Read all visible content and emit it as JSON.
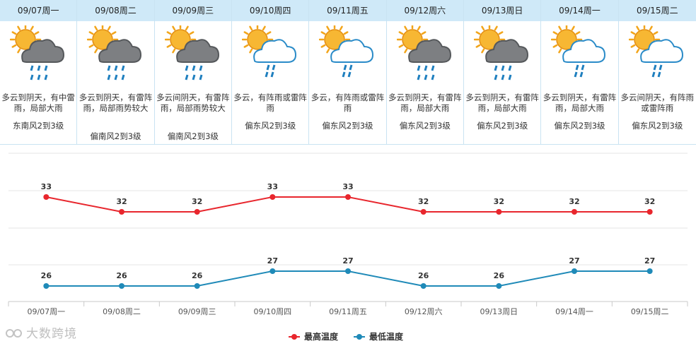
{
  "days": [
    {
      "date": "09/07周一",
      "desc": "多云到阴天，有中雷雨，局部大雨",
      "wind": "东南风2到3级",
      "icon": "sun-dark-cloud-rain-icon",
      "rain_style": "dark"
    },
    {
      "date": "09/08周二",
      "desc": "多云到阴天，有雷阵雨，局部雨势较大",
      "wind": "偏南风2到3级",
      "icon": "sun-dark-cloud-rain-icon",
      "rain_style": "dark"
    },
    {
      "date": "09/09周三",
      "desc": "多云间阴天，有雷阵雨，局部雨势较大",
      "wind": "偏南风2到3级",
      "icon": "sun-dark-cloud-rain-icon",
      "rain_style": "dark"
    },
    {
      "date": "09/10周四",
      "desc": "多云，有阵雨或雷阵雨",
      "wind": "偏东风2到3级",
      "icon": "sun-cloud-shower-icon",
      "rain_style": "light"
    },
    {
      "date": "09/11周五",
      "desc": "多云，有阵雨或雷阵雨",
      "wind": "偏东风2到3级",
      "icon": "sun-cloud-shower-icon",
      "rain_style": "light"
    },
    {
      "date": "09/12周六",
      "desc": "多云到阴天，有雷阵雨，局部大雨",
      "wind": "偏东风2到3级",
      "icon": "sun-dark-cloud-rain-icon",
      "rain_style": "dark"
    },
    {
      "date": "09/13周日",
      "desc": "多云到阴天，有雷阵雨，局部大雨",
      "wind": "偏东风2到3级",
      "icon": "sun-dark-cloud-rain-icon",
      "rain_style": "dark"
    },
    {
      "date": "09/14周一",
      "desc": "多云到阴天，有雷阵雨，局部大雨",
      "wind": "偏东风2到3级",
      "icon": "sun-cloud-shower-icon",
      "rain_style": "light"
    },
    {
      "date": "09/15周二",
      "desc": "多云间阴天，有阵雨或雷阵雨",
      "wind": "偏东风2到3级",
      "icon": "sun-cloud-shower-icon",
      "rain_style": "light"
    }
  ],
  "chart_data": {
    "type": "line",
    "categories": [
      "09/07周一",
      "09/08周二",
      "09/09周三",
      "09/10周四",
      "09/11周五",
      "09/12周六",
      "09/13周日",
      "09/14周一",
      "09/15周二"
    ],
    "series": [
      {
        "name": "最高温度",
        "values": [
          33,
          32,
          32,
          33,
          33,
          32,
          32,
          32,
          32
        ],
        "color": "#e8262d"
      },
      {
        "name": "最低温度",
        "values": [
          26,
          26,
          26,
          27,
          27,
          26,
          26,
          27,
          27
        ],
        "color": "#1f8ab8"
      }
    ],
    "title": "",
    "xlabel": "",
    "ylabel": "",
    "legend_position": "bottom-center"
  },
  "colors": {
    "header_bg": "#cfe9f8",
    "border": "#c9e3f2",
    "grid": "#e6e6e6"
  },
  "watermark": "大数跨境"
}
